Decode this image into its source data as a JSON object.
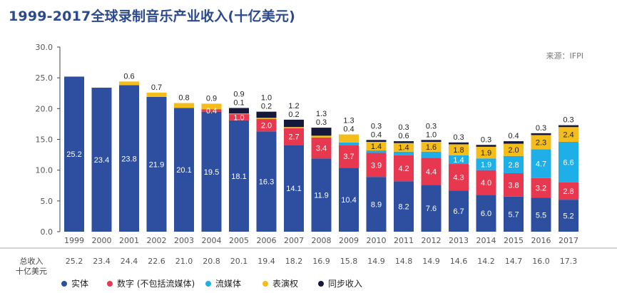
{
  "title": "1999-2017全球录制音乐产业收入(十亿美元)",
  "source": "来源：IFPI",
  "totals_label": [
    "总收入",
    "十亿美元"
  ],
  "colors": {
    "physical": "#2e4fa0",
    "digital": "#e8384f",
    "streaming": "#1eaee8",
    "performance": "#f4bd1b",
    "sync": "#14183a"
  },
  "chart_data": {
    "type": "bar",
    "stacked": true,
    "title": "1999-2017全球录制音乐产业收入(十亿美元)",
    "ylim": [
      0,
      30
    ],
    "yticks": [
      "0.0",
      "5.0",
      "10.0",
      "15.0",
      "20.0",
      "25.0",
      "30.0"
    ],
    "categories": [
      "1999",
      "2000",
      "2001",
      "2002",
      "2003",
      "2004",
      "2005",
      "2006",
      "2007",
      "2008",
      "2009",
      "2010",
      "2011",
      "2012",
      "2013",
      "2014",
      "2015",
      "2016",
      "2017"
    ],
    "series": [
      {
        "name": "实体",
        "key": "physical",
        "values": [
          25.2,
          23.4,
          23.8,
          21.9,
          20.1,
          19.5,
          18.1,
          16.3,
          14.1,
          11.9,
          10.4,
          8.9,
          8.2,
          7.6,
          6.7,
          6.0,
          5.7,
          5.5,
          5.2
        ]
      },
      {
        "name": "数字 (不包括流媒体)",
        "key": "digital",
        "values": [
          null,
          null,
          null,
          null,
          null,
          0.4,
          1.0,
          2.0,
          2.7,
          3.4,
          3.7,
          3.9,
          4.2,
          4.4,
          4.3,
          4.0,
          3.8,
          3.2,
          2.8
        ]
      },
      {
        "name": "流媒体",
        "key": "streaming",
        "values": [
          null,
          null,
          null,
          null,
          null,
          null,
          null,
          null,
          null,
          null,
          0.4,
          0.4,
          0.6,
          1.0,
          1.4,
          1.9,
          2.8,
          4.7,
          6.6
        ]
      },
      {
        "name": "表演权",
        "key": "performance",
        "values": [
          null,
          null,
          0.6,
          0.7,
          0.8,
          0.9,
          0.1,
          0.2,
          0.2,
          0.3,
          1.3,
          1.4,
          1.4,
          1.6,
          1.8,
          1.9,
          2.0,
          2.3,
          2.4
        ]
      },
      {
        "name": "同步收入",
        "key": "sync",
        "values": [
          null,
          null,
          null,
          null,
          null,
          null,
          0.9,
          1.0,
          1.2,
          1.3,
          null,
          0.3,
          0.3,
          0.3,
          0.3,
          0.3,
          0.4,
          0.3,
          0.3
        ]
      }
    ],
    "totals": [
      "25.2",
      "23.4",
      "24.4",
      "22.6",
      "21.0",
      "20.8",
      "20.1",
      "19.4",
      "18.2",
      "16.9",
      "15.8",
      "14.9",
      "14.8",
      "14.9",
      "14.6",
      "14.2",
      "14.7",
      "16.0",
      "17.3"
    ],
    "legend_position": "bottom-left",
    "grid": false
  }
}
